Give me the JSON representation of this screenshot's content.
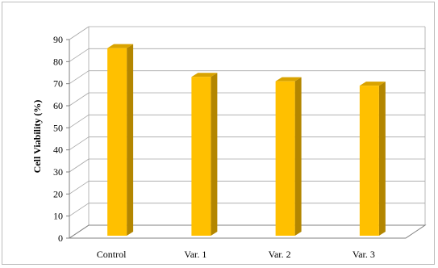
{
  "chart_data": {
    "type": "bar",
    "style": "3d-column",
    "title": "",
    "xlabel": "",
    "ylabel": "Cell Viability (%)",
    "categories": [
      "Control",
      "Var. 1",
      "Var. 2",
      "Var. 3"
    ],
    "values": [
      85,
      72,
      70,
      68
    ],
    "ylim": [
      0,
      90
    ],
    "yticks": [
      "0",
      "10",
      "20",
      "30",
      "40",
      "50",
      "60",
      "70",
      "80",
      "90"
    ],
    "grid": true,
    "legend": "none",
    "colors": {
      "bar_front": "#FFC000",
      "bar_side": "#B38600",
      "bar_top": "#D9A300",
      "grid": "#A6A6A6",
      "axis": "#808080"
    }
  }
}
